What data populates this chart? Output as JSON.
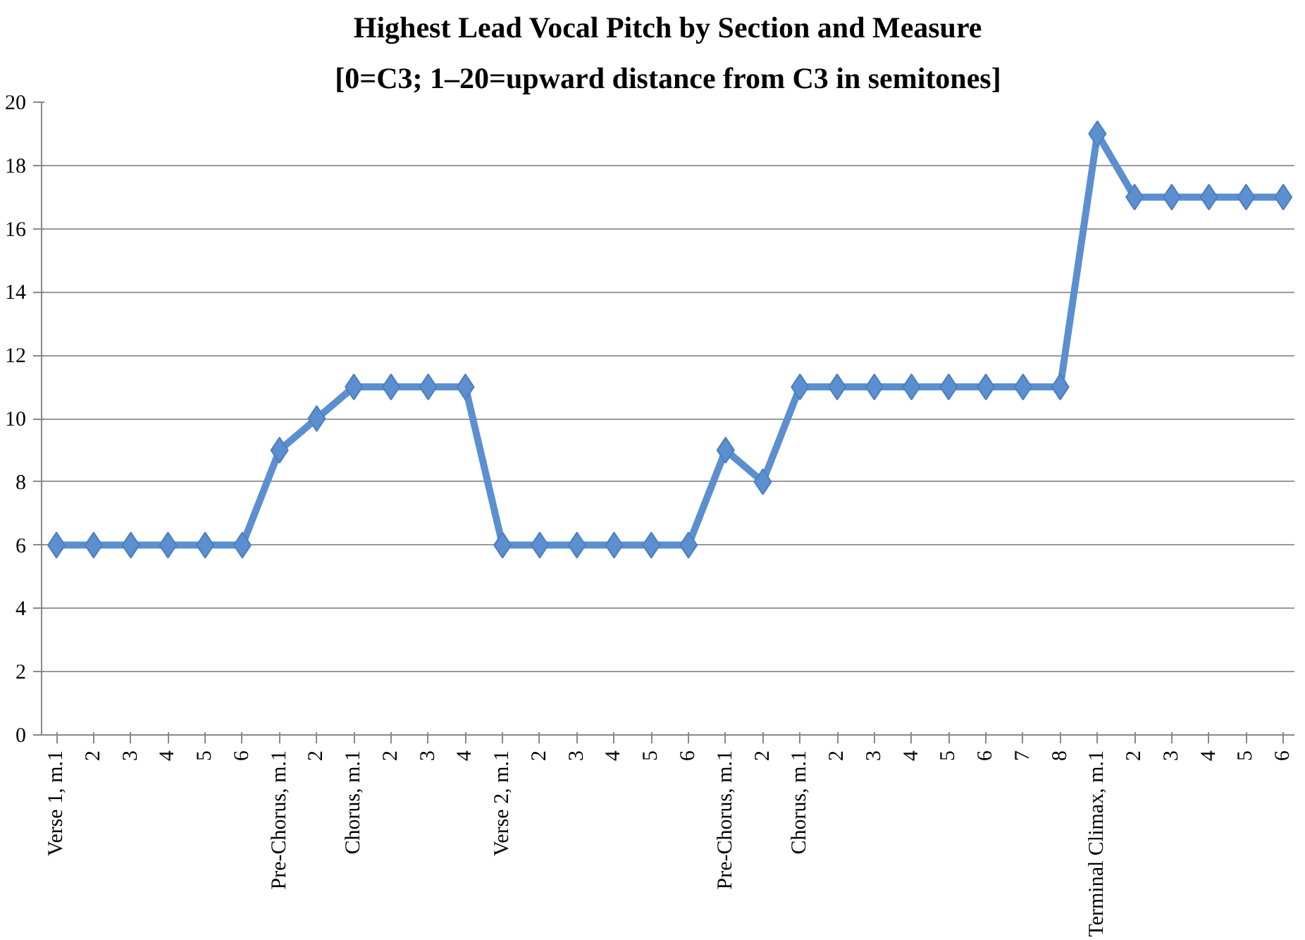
{
  "chart_data": {
    "type": "line",
    "title": "Highest Lead Vocal Pitch by Section and Measure",
    "subtitle": "[0=C3; 1–20=upward distance from C3 in semitones]",
    "categories": [
      "Verse 1, m.1",
      "2",
      "3",
      "4",
      "5",
      "6",
      "Pre-Chorus, m.1",
      "2",
      "Chorus, m.1",
      "2",
      "3",
      "4",
      "Verse 2, m.1",
      "2",
      "3",
      "4",
      "5",
      "6",
      "Pre-Chorus, m.1",
      "2",
      "Chorus, m.1",
      "2",
      "3",
      "4",
      "5",
      "6",
      "7",
      "8",
      "Terminal Climax, m.1",
      "2",
      "3",
      "4",
      "5",
      "6"
    ],
    "series": [
      {
        "color": "#5b8fd0",
        "values": [
          6,
          6,
          6,
          6,
          6,
          6,
          9,
          10,
          11,
          11,
          11,
          11,
          6,
          6,
          6,
          6,
          6,
          6,
          9,
          8,
          11,
          11,
          11,
          11,
          11,
          11,
          11,
          11,
          19,
          17,
          17,
          17,
          17,
          17
        ]
      }
    ],
    "ylim": [
      0,
      20
    ],
    "yticks": [
      0,
      2,
      4,
      6,
      8,
      10,
      12,
      14,
      16,
      18,
      20
    ],
    "grid": "y",
    "marker": "diamond",
    "line_style": "solid"
  }
}
